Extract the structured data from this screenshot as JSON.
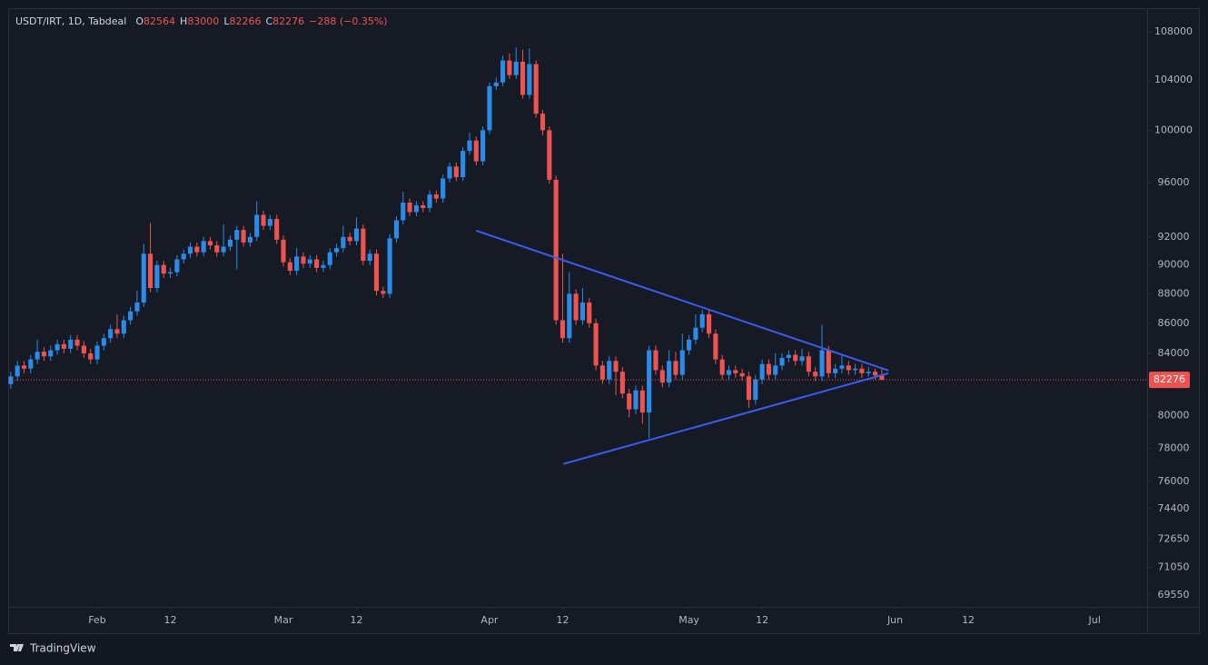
{
  "chart_data": {
    "type": "candlestick",
    "title": "USDT/IRT, 1D, Tabdeal",
    "legend_labels": [
      "O",
      "H",
      "L",
      "C"
    ],
    "change_label": "−288 (−0.35%)",
    "brand": "TradingView",
    "log": true,
    "grid": false,
    "up_color": "#2b8be8",
    "down_color": "#ef5350",
    "line_color": "#3a5cf0",
    "xlim": [
      -13.25,
      157.9
    ],
    "ylim": [
      68900,
      109930
    ],
    "xticks": [
      {
        "value": 0,
        "label": "Feb"
      },
      {
        "value": 11,
        "label": "12"
      },
      {
        "value": 28,
        "label": "Mar"
      },
      {
        "value": 39,
        "label": "12"
      },
      {
        "value": 59,
        "label": "Apr"
      },
      {
        "value": 70,
        "label": "12"
      },
      {
        "value": 89,
        "label": "May"
      },
      {
        "value": 100,
        "label": "12"
      },
      {
        "value": 120,
        "label": "Jun"
      },
      {
        "value": 131,
        "label": "12"
      },
      {
        "value": 150,
        "label": "Jul"
      }
    ],
    "yticks": [
      108000,
      104000,
      100000,
      96000,
      92000,
      90000,
      88000,
      86000,
      84000,
      80000,
      78000,
      76000,
      74400,
      72650,
      71050,
      69550
    ],
    "x": [
      -13,
      -12,
      -11,
      -10,
      -9,
      -8,
      -7,
      -6,
      -5,
      -4,
      -3,
      -2,
      -1,
      0,
      1,
      2,
      3,
      4,
      5,
      6,
      7,
      8,
      9,
      10,
      11,
      12,
      13,
      14,
      15,
      16,
      17,
      18,
      19,
      20,
      21,
      22,
      23,
      24,
      25,
      26,
      27,
      28,
      29,
      30,
      31,
      32,
      33,
      34,
      35,
      36,
      37,
      38,
      39,
      40,
      41,
      42,
      43,
      44,
      45,
      46,
      47,
      48,
      49,
      50,
      51,
      52,
      53,
      54,
      55,
      56,
      57,
      58,
      59,
      60,
      61,
      62,
      63,
      64,
      65,
      66,
      67,
      68,
      69,
      70,
      71,
      72,
      73,
      74,
      75,
      76,
      77,
      78,
      79,
      80,
      81,
      82,
      83,
      84,
      85,
      86,
      87,
      88,
      89,
      90,
      91,
      92,
      93,
      94,
      95,
      96,
      97,
      98,
      99,
      100,
      101,
      102,
      103,
      104,
      105,
      106,
      107,
      108,
      109,
      110,
      111,
      112,
      113,
      114,
      115,
      116,
      117,
      118
    ],
    "open": [
      82000,
      82500,
      83200,
      83000,
      83600,
      84100,
      83800,
      84200,
      84600,
      84300,
      84900,
      84500,
      84000,
      83600,
      84500,
      85000,
      85600,
      85300,
      86200,
      86800,
      87400,
      90800,
      88400,
      90000,
      89400,
      89500,
      90400,
      90800,
      91300,
      90900,
      91700,
      91400,
      90900,
      91300,
      91800,
      92500,
      91600,
      92000,
      93600,
      92800,
      93300,
      91800,
      90200,
      89600,
      90600,
      90100,
      90400,
      89800,
      90000,
      90900,
      91200,
      92000,
      91700,
      92600,
      90300,
      90800,
      88200,
      88000,
      91900,
      93200,
      94500,
      93800,
      94300,
      94100,
      95100,
      94800,
      96300,
      97200,
      96400,
      98400,
      99200,
      97600,
      100000,
      103500,
      103800,
      105600,
      104400,
      105500,
      102800,
      105300,
      101300,
      100000,
      96200,
      86200,
      85000,
      88000,
      86200,
      87400,
      86000,
      83200,
      82300,
      83500,
      82800,
      81400,
      80400,
      81600,
      80200,
      84200,
      82900,
      82100,
      83500,
      82600,
      84200,
      84900,
      85700,
      86600,
      85300,
      83600,
      82600,
      82900,
      82700,
      82500,
      81000,
      82300,
      83300,
      82600,
      83200,
      83700,
      83900,
      83500,
      83800,
      82800,
      82500,
      84200,
      82700,
      83000,
      83200,
      82900,
      83000,
      82700,
      82800,
      82564
    ],
    "high": [
      82800,
      83500,
      83500,
      83900,
      84900,
      84400,
      84500,
      84900,
      84900,
      85200,
      85200,
      84800,
      84300,
      84800,
      85300,
      85900,
      86600,
      86500,
      87100,
      88200,
      91500,
      93000,
      90300,
      90300,
      89800,
      90700,
      91100,
      91600,
      91600,
      92000,
      92000,
      91700,
      92900,
      92100,
      92800,
      92800,
      92300,
      94600,
      93900,
      93600,
      93600,
      92100,
      90500,
      91200,
      90900,
      90700,
      90700,
      90300,
      91200,
      91500,
      92800,
      92300,
      93400,
      92900,
      91100,
      91100,
      88500,
      92200,
      93500,
      95300,
      94800,
      94600,
      94600,
      95400,
      95400,
      96600,
      97500,
      97500,
      98700,
      99800,
      99500,
      100300,
      103800,
      104200,
      106000,
      106200,
      106700,
      106500,
      106600,
      105600,
      101600,
      100300,
      96500,
      90800,
      89500,
      88300,
      88400,
      87700,
      86300,
      83500,
      83800,
      83800,
      83100,
      81700,
      81900,
      81900,
      84500,
      84500,
      83200,
      84200,
      84100,
      85300,
      85200,
      86600,
      86900,
      86900,
      85600,
      83900,
      83200,
      83200,
      83000,
      82800,
      82600,
      83600,
      83600,
      84000,
      84000,
      84200,
      84200,
      84300,
      84100,
      83100,
      85900,
      84500,
      83300,
      83900,
      83500,
      83300,
      83300,
      83100,
      83000,
      83000
    ],
    "low": [
      81700,
      82200,
      82700,
      82700,
      83300,
      83500,
      83500,
      83900,
      84000,
      84000,
      84200,
      83700,
      83300,
      83300,
      84200,
      84700,
      85000,
      85000,
      85900,
      86500,
      87100,
      88100,
      88100,
      89100,
      89100,
      89200,
      90100,
      90500,
      90600,
      90600,
      91100,
      90600,
      90600,
      91000,
      89700,
      91300,
      91300,
      91700,
      92500,
      92500,
      91500,
      89900,
      89300,
      89300,
      89800,
      89800,
      89500,
      89500,
      89700,
      90600,
      90900,
      91400,
      91400,
      90000,
      90000,
      87900,
      87700,
      87700,
      91600,
      92900,
      93500,
      93500,
      93800,
      93800,
      94500,
      94500,
      96000,
      96100,
      96100,
      98100,
      97300,
      97300,
      99700,
      103200,
      103500,
      104100,
      104100,
      102500,
      102500,
      101000,
      99600,
      95900,
      85900,
      84700,
      84700,
      85900,
      85900,
      85700,
      82900,
      82000,
      82000,
      81300,
      81100,
      79900,
      80100,
      79500,
      78600,
      82600,
      81800,
      81800,
      82300,
      82300,
      83900,
      84600,
      85400,
      85000,
      83300,
      82300,
      82300,
      82400,
      82200,
      80500,
      80700,
      82000,
      82300,
      82300,
      82900,
      83400,
      83200,
      83200,
      82500,
      82200,
      82200,
      82400,
      82400,
      82700,
      82600,
      82600,
      82400,
      82500,
      82300,
      82266
    ],
    "close": [
      82500,
      83200,
      83000,
      83600,
      84100,
      83800,
      84200,
      84600,
      84300,
      84900,
      84500,
      84000,
      83600,
      84500,
      85000,
      85600,
      85300,
      86200,
      86800,
      87400,
      90800,
      88400,
      90000,
      89400,
      89500,
      90400,
      90800,
      91300,
      90900,
      91700,
      91400,
      90900,
      91300,
      91800,
      92500,
      91600,
      92000,
      93600,
      92800,
      93300,
      91800,
      90200,
      89600,
      90600,
      90100,
      90400,
      89800,
      90000,
      90900,
      91200,
      92000,
      91700,
      92600,
      90300,
      90800,
      88200,
      88000,
      91900,
      93200,
      94500,
      93800,
      94300,
      94100,
      95100,
      94800,
      96300,
      97200,
      96400,
      98400,
      99200,
      97600,
      100000,
      103500,
      103800,
      105600,
      104400,
      105500,
      102800,
      105300,
      101300,
      100000,
      96200,
      86200,
      85000,
      88000,
      86200,
      87400,
      86000,
      83200,
      82300,
      83500,
      82800,
      81400,
      80400,
      81600,
      80200,
      84200,
      82900,
      82100,
      83500,
      82600,
      84200,
      84900,
      85700,
      86600,
      85300,
      83600,
      82600,
      82900,
      82700,
      82500,
      81000,
      82300,
      83300,
      82600,
      83200,
      83700,
      83900,
      83500,
      83800,
      82800,
      82500,
      84200,
      82700,
      83000,
      83200,
      82900,
      83000,
      82700,
      82800,
      82564,
      82276
    ],
    "trendlines": [
      {
        "x": [
          57,
          119
        ],
        "y": [
          92450,
          82880
        ]
      },
      {
        "x": [
          70.1,
          119
        ],
        "y": [
          77040,
          82700
        ]
      }
    ]
  }
}
